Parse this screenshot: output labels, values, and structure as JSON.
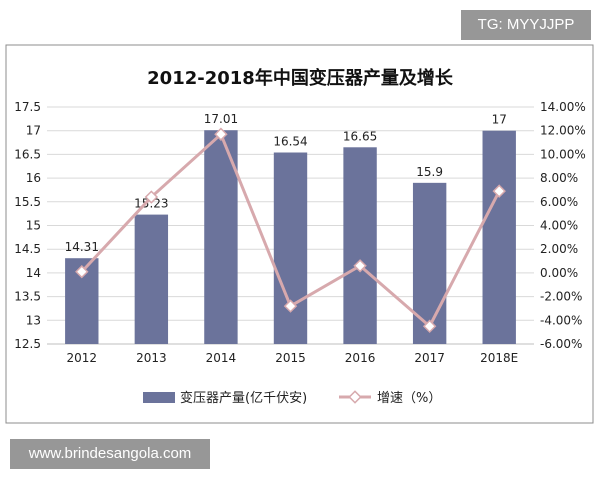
{
  "watermarks": {
    "top": "TG: MYYJJPP",
    "bottom": "www.brindesangola.com"
  },
  "colors": {
    "bar": "#6b739b",
    "line": "#d7a9ad",
    "marker_fill": "#ffffff",
    "marker_stroke": "#d7a9ad",
    "grid": "#d9d9d9",
    "frame": "#8c8c8c"
  },
  "chart_data": {
    "type": "bar",
    "title": "2012-2018年中国变压器产量及增长",
    "categories": [
      "2012",
      "2013",
      "2014",
      "2015",
      "2016",
      "2017",
      "2018E"
    ],
    "grid": true,
    "legend_position": "bottom",
    "series": [
      {
        "name": "变压器产量(亿千伏安)",
        "type": "bar",
        "axis": "left",
        "values": [
          14.31,
          15.23,
          17.01,
          16.54,
          16.65,
          15.9,
          17
        ],
        "data_labels": [
          "14.31",
          "15.23",
          "17.01",
          "16.54",
          "16.65",
          "15.9",
          "17"
        ]
      },
      {
        "name": "增速（%）",
        "type": "line",
        "axis": "right",
        "values": [
          0.1,
          6.4,
          11.7,
          -2.8,
          0.6,
          -4.5,
          6.9
        ]
      }
    ],
    "y_left": {
      "ylim": [
        12.5,
        17.5
      ],
      "ticks": [
        "17.5",
        "17",
        "16.5",
        "16",
        "15.5",
        "15",
        "14.5",
        "14",
        "13.5",
        "13",
        "12.5"
      ]
    },
    "y_right": {
      "ylim": [
        -6,
        14
      ],
      "ticks": [
        "14.00%",
        "12.00%",
        "10.00%",
        "8.00%",
        "6.00%",
        "4.00%",
        "2.00%",
        "0.00%",
        "-2.00%",
        "-4.00%",
        "-6.00%"
      ]
    }
  }
}
